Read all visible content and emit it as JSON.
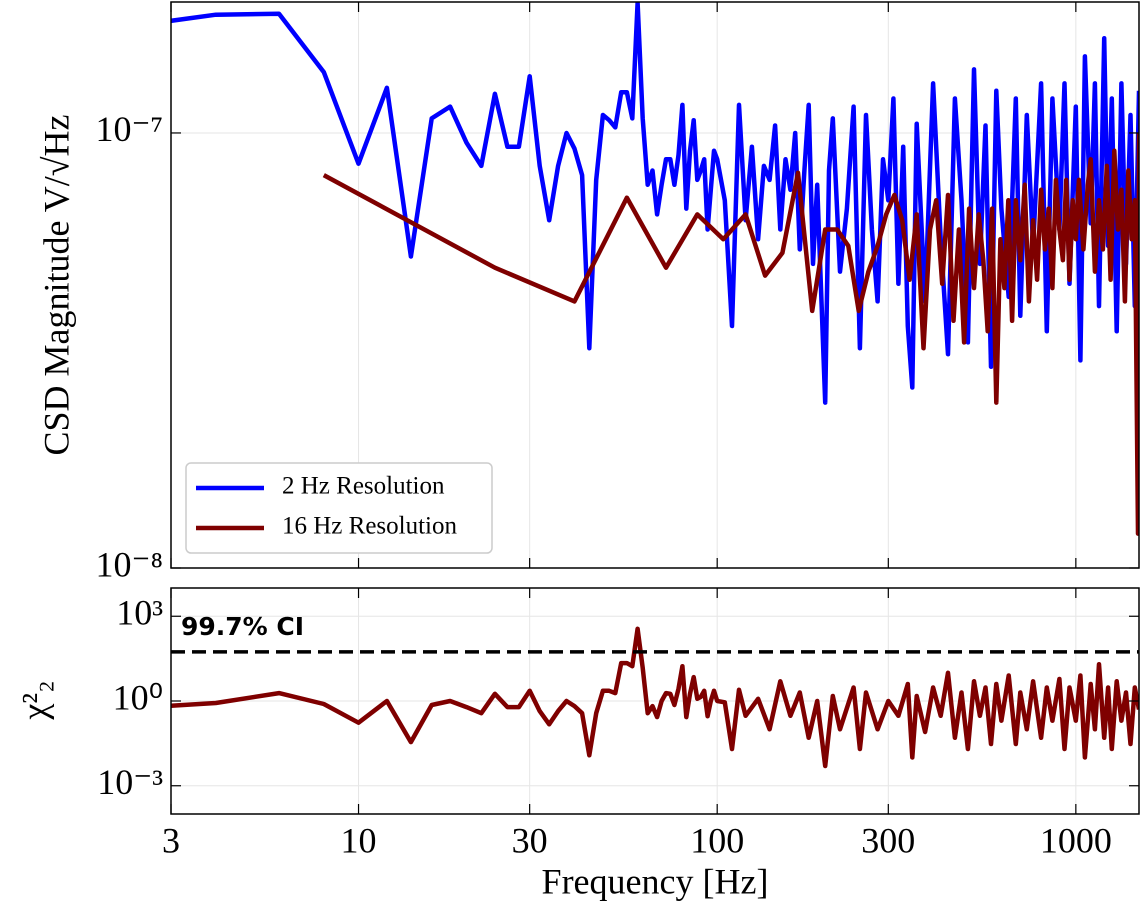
{
  "chart_data": [
    {
      "type": "line",
      "xscale": "log",
      "yscale": "log",
      "grid": true,
      "legend": "lower left",
      "ylabel": "CSD Magnitude V/√Hz",
      "xlim": [
        3,
        1500
      ],
      "xticks": [
        3,
        10,
        30,
        100,
        300,
        1000
      ],
      "ylim": [
        1e-08,
        2e-07
      ],
      "yticks": [
        {
          "value": 1e-08,
          "label": "10⁻⁸"
        },
        {
          "value": 1e-07,
          "label": "10⁻⁷"
        }
      ],
      "series": [
        {
          "name": "2 Hz Resolution",
          "color": "#0000ff",
          "x": [
            2,
            4,
            6,
            8,
            10,
            12,
            14,
            16,
            18,
            20,
            22,
            24,
            26,
            28,
            30,
            32,
            34,
            36,
            38,
            40,
            42,
            44,
            46,
            48,
            50,
            52,
            54,
            56,
            58,
            60,
            62,
            64,
            66,
            68,
            70,
            72,
            74,
            76,
            78,
            80,
            82,
            84,
            86,
            88,
            90,
            92,
            94,
            96,
            98,
            100,
            105,
            110,
            115,
            120,
            125,
            130,
            135,
            140,
            145,
            150,
            155,
            160,
            165,
            170,
            175,
            180,
            185,
            190,
            200,
            205,
            210,
            220,
            230,
            240,
            250,
            260,
            270,
            280,
            290,
            300,
            310,
            320,
            330,
            340,
            350,
            360,
            380,
            400,
            420,
            440,
            460,
            480,
            500,
            520,
            540,
            560,
            580,
            600,
            620,
            650,
            680,
            700,
            730,
            760,
            800,
            830,
            860,
            900,
            930,
            960,
            1000,
            1030,
            1060,
            1100,
            1130,
            1160,
            1200,
            1230,
            1260,
            1300,
            1340,
            1380,
            1420,
            1460,
            1500
          ],
          "values": [
            1.73e-07,
            1.87e-07,
            1.88e-07,
            1.38e-07,
            8.5e-08,
            1.27e-07,
            5.2e-08,
            1.08e-07,
            1.15e-07,
            9.5e-08,
            8.4e-08,
            1.23e-07,
            9.3e-08,
            9.3e-08,
            1.35e-07,
            8.4e-08,
            6.3e-08,
            8.4e-08,
            1e-07,
            9.2e-08,
            8e-08,
            3.2e-08,
            7.8e-08,
            1.1e-07,
            1.07e-07,
            1.03e-07,
            1.24e-07,
            1.24e-07,
            1.08e-07,
            1.99e-07,
            1.08e-07,
            7.6e-08,
            8.2e-08,
            6.5e-08,
            7.6e-08,
            8.7e-08,
            8.7e-08,
            7.6e-08,
            8.9e-08,
            1.16e-07,
            6.7e-08,
            9.1e-08,
            1.07e-07,
            7.8e-08,
            8.2e-08,
            8.7e-08,
            6e-08,
            7.4e-08,
            9.1e-08,
            8.7e-08,
            7e-08,
            3.6e-08,
            1.16e-07,
            6.3e-08,
            9.3e-08,
            5.7e-08,
            8.4e-08,
            7.8e-08,
            1.04e-07,
            6e-08,
            8.7e-08,
            7.4e-08,
            1e-07,
            5.4e-08,
            8.2e-08,
            1.16e-07,
            5e-08,
            7.6e-08,
            2.4e-08,
            8.2e-08,
            1.08e-07,
            4.8e-08,
            6.7e-08,
            1.15e-07,
            3.2e-08,
            1.1e-07,
            6e-08,
            4.1e-08,
            8.7e-08,
            7e-08,
            1.2e-07,
            4.5e-08,
            9.3e-08,
            3.6e-08,
            2.6e-08,
            1.05e-07,
            4.1e-08,
            1.3e-07,
            5.7e-08,
            3.1e-08,
            1.2e-07,
            7e-08,
            3.3e-08,
            1.4e-07,
            5e-08,
            1.04e-07,
            2.9e-08,
            1.25e-07,
            6.7e-08,
            4.2e-08,
            1.2e-07,
            3.8e-08,
            1.1e-07,
            5.5e-08,
            1.3e-07,
            3.5e-08,
            1.2e-07,
            6e-08,
            1.3e-07,
            4.5e-08,
            1.15e-07,
            3e-08,
            1.5e-07,
            6.2e-08,
            1.3e-07,
            4e-08,
            1.65e-07,
            5.5e-08,
            1.2e-07,
            3.5e-08,
            1.3e-07,
            5e-08,
            1.1e-07,
            4e-08,
            1.25e-07
          ]
        },
        {
          "name": "16 Hz Resolution",
          "color": "#7f0000",
          "x": [
            8,
            24,
            40,
            56,
            72,
            88,
            104,
            120,
            136,
            152,
            168,
            184,
            200,
            216,
            232,
            248,
            264,
            280,
            296,
            312,
            328,
            344,
            360,
            376,
            392,
            408,
            424,
            440,
            456,
            472,
            488,
            504,
            520,
            536,
            552,
            568,
            584,
            600,
            616,
            632,
            648,
            664,
            680,
            700,
            720,
            740,
            760,
            780,
            800,
            820,
            840,
            860,
            880,
            900,
            920,
            940,
            960,
            980,
            1000,
            1020,
            1050,
            1080,
            1100,
            1130,
            1160,
            1190,
            1220,
            1250,
            1280,
            1310,
            1340,
            1370,
            1400,
            1430,
            1460,
            1490,
            1500
          ],
          "values": [
            8e-08,
            4.9e-08,
            4.1e-08,
            7.1e-08,
            4.9e-08,
            6.5e-08,
            5.7e-08,
            6.5e-08,
            4.7e-08,
            5.3e-08,
            8.1e-08,
            3.9e-08,
            6e-08,
            6e-08,
            5.5e-08,
            3.9e-08,
            4.8e-08,
            5.5e-08,
            6.5e-08,
            7.2e-08,
            6.3e-08,
            4.6e-08,
            6.5e-08,
            3.2e-08,
            6e-08,
            7e-08,
            4.5e-08,
            7.2e-08,
            3.7e-08,
            6e-08,
            3.3e-08,
            6.7e-08,
            4.4e-08,
            6.5e-08,
            5.1e-08,
            3.5e-08,
            6.7e-08,
            2.4e-08,
            5.7e-08,
            4.4e-08,
            7e-08,
            3.7e-08,
            7e-08,
            5.1e-08,
            7.6e-08,
            4.1e-08,
            6.3e-08,
            4.6e-08,
            7.4e-08,
            5.4e-08,
            6.7e-08,
            4.4e-08,
            7.8e-08,
            6e-08,
            5.1e-08,
            7.8e-08,
            4.6e-08,
            7e-08,
            5.7e-08,
            7.8e-08,
            5.4e-08,
            7.6e-08,
            8.7e-08,
            4.8e-08,
            7e-08,
            5.4e-08,
            8.4e-08,
            4.6e-08,
            9.1e-08,
            6e-08,
            7.4e-08,
            4.1e-08,
            8.2e-08,
            5.7e-08,
            7e-08,
            1.2e-08,
            1e-07
          ]
        }
      ]
    },
    {
      "type": "line",
      "xscale": "log",
      "yscale": "log",
      "grid": true,
      "xlabel": "Frequency [Hz]",
      "ylabel": "χ²₂",
      "xlim": [
        3,
        1500
      ],
      "xticks": [
        3,
        10,
        30,
        100,
        300,
        1000
      ],
      "ylim": [
        0.0001,
        10000.0
      ],
      "yticks": [
        {
          "value": 0.001,
          "label": "10⁻³"
        },
        {
          "value": 1,
          "label": "10⁰"
        },
        {
          "value": 1000,
          "label": "10³"
        }
      ],
      "threshold": {
        "value": 55,
        "label": "99.7% CI",
        "color": "#000000"
      },
      "series": [
        {
          "color": "#7f0000",
          "x": [
            2,
            4,
            6,
            8,
            10,
            12,
            14,
            16,
            18,
            20,
            22,
            24,
            26,
            28,
            30,
            32,
            34,
            36,
            38,
            40,
            42,
            44,
            46,
            48,
            50,
            52,
            54,
            56,
            58,
            60,
            62,
            64,
            66,
            68,
            70,
            72,
            74,
            76,
            78,
            80,
            82,
            84,
            86,
            88,
            90,
            92,
            94,
            96,
            98,
            100,
            105,
            110,
            115,
            120,
            130,
            140,
            150,
            160,
            170,
            180,
            190,
            200,
            210,
            220,
            240,
            250,
            260,
            280,
            300,
            320,
            340,
            350,
            360,
            380,
            400,
            420,
            440,
            460,
            480,
            500,
            520,
            540,
            560,
            580,
            600,
            620,
            650,
            680,
            700,
            730,
            760,
            800,
            830,
            860,
            900,
            930,
            960,
            1000,
            1030,
            1060,
            1100,
            1130,
            1160,
            1200,
            1230,
            1260,
            1300,
            1340,
            1380,
            1420,
            1460,
            1500
          ],
          "values": [
            0.5,
            0.85,
            1.9,
            0.78,
            0.17,
            1.0,
            0.035,
            0.72,
            1.0,
            0.61,
            0.37,
            1.8,
            0.61,
            0.61,
            2.3,
            0.44,
            0.15,
            0.44,
            1.0,
            0.66,
            0.37,
            0.012,
            0.37,
            2.3,
            2.3,
            1.9,
            22,
            22,
            17,
            360,
            15,
            0.37,
            0.66,
            0.27,
            1.0,
            1.9,
            1.8,
            0.72,
            2.7,
            17,
            0.27,
            1.8,
            7,
            1.2,
            1.4,
            2.3,
            0.29,
            1.0,
            2.3,
            1.0,
            0.9,
            0.02,
            2.5,
            0.3,
            1.2,
            0.1,
            5,
            0.3,
            2,
            0.05,
            1,
            0.005,
            1.5,
            0.1,
            3,
            0.02,
            2,
            0.1,
            1,
            0.3,
            4,
            0.01,
            1.5,
            0.08,
            3,
            0.3,
            10,
            0.05,
            2,
            0.02,
            5,
            0.3,
            3,
            0.03,
            4,
            0.2,
            8,
            0.03,
            2,
            0.1,
            5,
            0.05,
            3,
            0.2,
            6,
            0.02,
            3,
            0.2,
            8,
            0.01,
            4,
            0.1,
            20,
            0.05,
            3,
            0.02,
            5,
            0.2,
            2,
            0.03,
            3,
            0.5
          ]
        }
      ]
    }
  ]
}
